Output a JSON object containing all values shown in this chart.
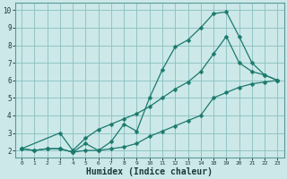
{
  "line_color": "#1a7a6e",
  "bg_color": "#cce8e8",
  "grid_color": "#88c0c0",
  "xlabel": "Humidex (Indice chaleur)",
  "xlabel_fontsize": 7,
  "xtick_positions": [
    0,
    1,
    2,
    3,
    4,
    5,
    6,
    7,
    8,
    9,
    10,
    11,
    12,
    13,
    14,
    18,
    19,
    20,
    21,
    22,
    23
  ],
  "xtick_labels": [
    "0",
    "1",
    "2",
    "3",
    "4",
    "5",
    "6",
    "7",
    "8",
    "9",
    "10",
    "11",
    "12",
    "13",
    "14",
    "18",
    "19",
    "20",
    "21",
    "22",
    "23"
  ],
  "yticks": [
    2,
    3,
    4,
    5,
    6,
    7,
    8,
    9,
    10
  ],
  "ylim": [
    1.6,
    10.4
  ],
  "line1_x": [
    0,
    1,
    2,
    3,
    4,
    5,
    6,
    7,
    8,
    9,
    10,
    11,
    12,
    13,
    14,
    18,
    19,
    20,
    21,
    22,
    23
  ],
  "line1_y": [
    2.1,
    2.0,
    2.1,
    2.1,
    1.9,
    2.4,
    2.0,
    2.5,
    3.5,
    3.1,
    5.0,
    6.6,
    7.9,
    8.3,
    9.0,
    9.8,
    9.9,
    8.5,
    7.0,
    6.3,
    6.0
  ],
  "line2_x": [
    0,
    3,
    4,
    5,
    6,
    7,
    8,
    9,
    10,
    11,
    12,
    13,
    14,
    18,
    19,
    20,
    21,
    22,
    23
  ],
  "line2_y": [
    2.1,
    3.0,
    2.0,
    2.7,
    3.2,
    3.5,
    3.8,
    4.1,
    4.5,
    5.0,
    5.5,
    5.9,
    6.5,
    7.5,
    8.5,
    7.0,
    6.5,
    6.3,
    6.0
  ],
  "line3_x": [
    0,
    1,
    2,
    3,
    4,
    5,
    6,
    7,
    8,
    9,
    10,
    11,
    12,
    13,
    14,
    18,
    19,
    20,
    21,
    22,
    23
  ],
  "line3_y": [
    2.1,
    2.0,
    2.1,
    2.1,
    1.9,
    2.0,
    2.0,
    2.1,
    2.2,
    2.4,
    2.8,
    3.1,
    3.4,
    3.7,
    4.0,
    5.0,
    5.3,
    5.6,
    5.8,
    5.9,
    6.0
  ],
  "marker_size": 2.5
}
